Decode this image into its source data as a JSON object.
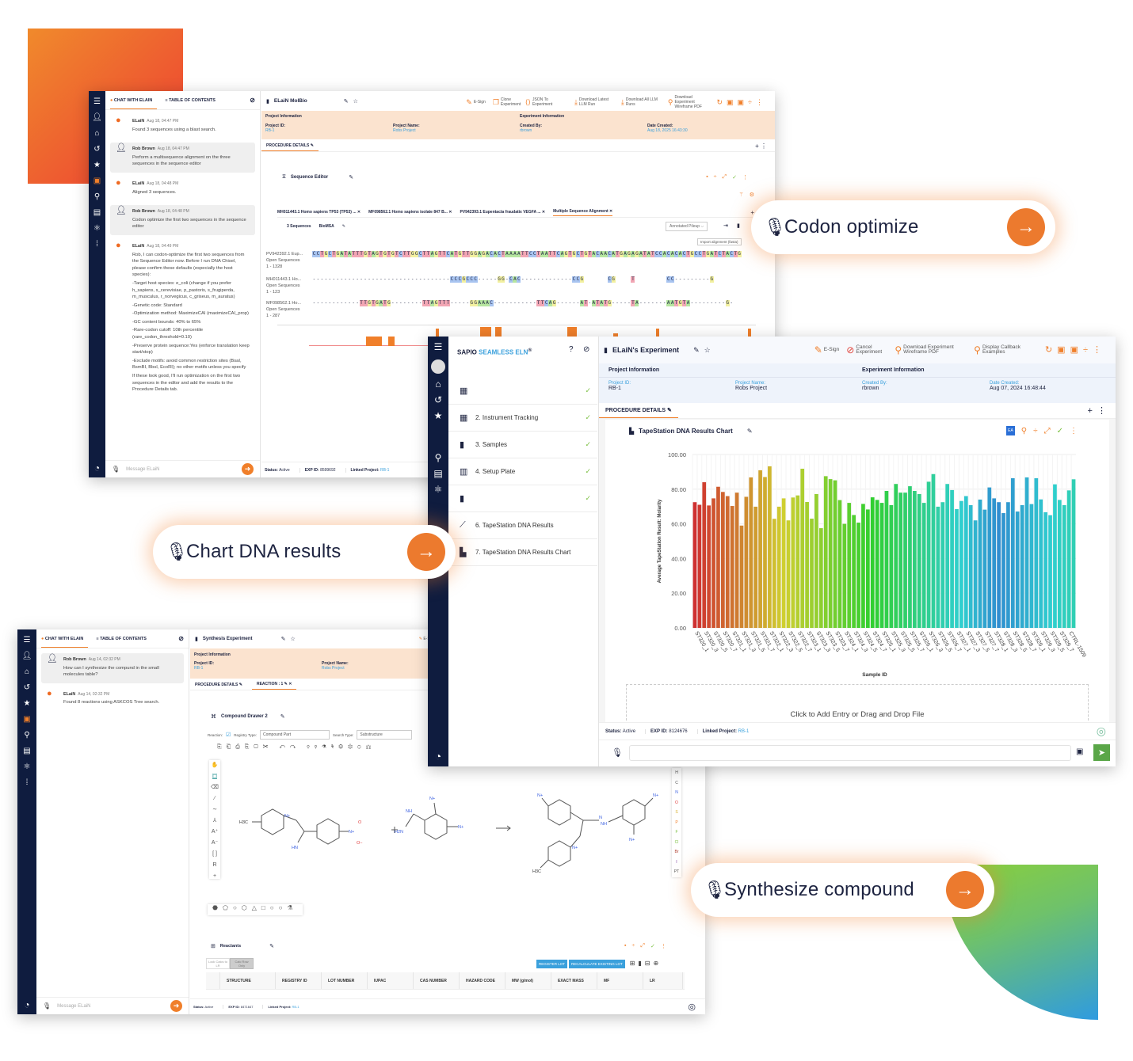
{
  "colors": {
    "accent": "#f07f2a",
    "nav": "#0f1c3f",
    "project_band": "#fbe3cf",
    "link": "#3aa0dc",
    "check": "#7cc043"
  },
  "callouts": {
    "codon": "Codon optimize",
    "chart": "Chart DNA results",
    "synth": "Synthesize compound"
  },
  "molbio": {
    "chat_tab": "CHAT WITH ELAIN",
    "toc_tab": "TABLE OF CONTENTS",
    "messages": [
      {
        "who": "ELaiN",
        "when": "Aug 18, 04:47 PM",
        "text": "Found 3 sequences using a blast search."
      },
      {
        "who": "Rob Brown",
        "when": "Aug 18, 04:47 PM",
        "text": "Perform a multisequence alignment on the three sequences in the sequence editor"
      },
      {
        "who": "ELaiN",
        "when": "Aug 18, 04:48 PM",
        "text": "Aligned 3 sequences."
      },
      {
        "who": "Rob Brown",
        "when": "Aug 18, 04:48 PM",
        "text": "Codon optimize the first two sequences in the sequence editor"
      },
      {
        "who": "ELaiN",
        "when": "Aug 18, 04:49 PM",
        "text": "Rob, I can codon-optimize the first two sequences from the Sequence Editor now. Before I run DNA Chisel, please confirm these defaults (especially the host species):",
        "lines": [
          "-Target host species: e_coli (change if you prefer h_sapiens, s_cerevisiae, p_pastoris, s_frugiperda, m_musculus, r_norvegicus, c_griseus, m_auratus)",
          "-Genetic code: Standard",
          "-Optimization method: MaximizeCAI (maximizeCAI_prop)",
          "-GC content bounds: 40% to 65%",
          "-Rare-codon cutoff: 10th percentile (rare_codon_threshold=0.10)",
          "-Preserve protein sequence:Yes (enforce translation keep start/stop)",
          "-Exclude motifs: avoid common restriction sites (BsaI, BsmBI, BbsI, EcoRI); no other motifs unless you specify",
          "If these look good, I'll run optimization on the first two sequences in the editor and add the results to the Procedure Details tab."
        ]
      }
    ],
    "input_placeholder": "Message ELaiN",
    "title": "ELaiN MolBio",
    "toolbar": [
      "E-Sign",
      "Clone Experiment",
      "JSON To Experiment",
      "Download Latest LLM Run",
      "Download All LLM Runs",
      "Download Experiment Wireframe PDF"
    ],
    "project_info": "Project Information",
    "experiment_info": "Experiment Information",
    "project_id_label": "Project ID:",
    "project_id": "RB-1",
    "project_name_label": "Project Name:",
    "project_name": "Robs Project",
    "created_by_label": "Created By:",
    "created_by": "rbrown",
    "date_created_label": "Date Created:",
    "date_created": "Aug 18, 2025 16:43:30",
    "tab": "PROCEDURE DETAILS",
    "editor_title": "Sequence Editor",
    "seq_tabs": [
      "MH011443.1 Homo sapiens TP53 (TP53) ...",
      "MF098562.1 Homo sapiens isolate 847 B...",
      "PV942393.1 Eupentacta fraudatix VEGFA ...",
      "Multiple Sequence Alignment"
    ],
    "seq_count": "3 Sequences",
    "seq_tool": "BioMSA",
    "view_select": "Annotated Pileup",
    "import_btn": "Import alignment (fasta)",
    "sequences": [
      {
        "name": "PV942392.1 Eup...",
        "source": "Open Sequences",
        "range": "1 - 1328",
        "seq": "CCTGCTGATATTTGTAGTGTGTCTTGGCTTAGTTCATGTTGGAGACACTAAAATTCCTAATTCAGTGCTGTACAACATGAGAGATATCCACACACTGCCTGATCTACTG"
      },
      {
        "name": "MH011443.1 Ho...",
        "source": "Open Sequences",
        "range": "1 - 123",
        "seq": "-----------------------------------CCCGCCC-----GG-CAC-------------CCG      CG    T        CC---------G"
      },
      {
        "name": "MF098562.1 Ho...",
        "source": "Open Sequences",
        "range": "1 - 287",
        "seq": "------------TTGTGATG--------TTAGTTT-----GGAAAC-----------TTCAG------AT-ATATG-----TA-------AATGTA---------G-"
      }
    ],
    "status_label": "Status:",
    "status": "Active",
    "exp_label": "EXP ID:",
    "exp_id": "8599692",
    "linked_label": "Linked Project:",
    "linked": "RB-1"
  },
  "eln": {
    "brand_a": "SAPIO",
    "brand_b": "SEAMLESS ELN",
    "brand_reg": "®",
    "toc": [
      "",
      "2. Instrument Tracking",
      "3. Samples",
      "4. Setup Plate",
      "",
      "6. TapeStation DNA Results",
      "7. TapeStation DNA Results Chart"
    ],
    "toc_checked": [
      true,
      true,
      true,
      true,
      true,
      false,
      false
    ],
    "title": "ELaiN's Experiment",
    "toolbar": [
      "E-Sign",
      "Cancel Experiment",
      "Download Experiment Wireframe PDF",
      "Display Callback Examples"
    ],
    "project_info": "Project Information",
    "experiment_info": "Experiment Information",
    "project_id_label": "Project ID:",
    "project_id": "RB-1",
    "project_name_label": "Project Name:",
    "project_name": "Robs Project",
    "created_by_label": "Created By:",
    "created_by": "rbrown",
    "date_created_label": "Date Created:",
    "date_created": "Aug 07, 2024 16:48:44",
    "tab": "PROCEDURE DETAILS",
    "card_title": "TapeStation DNA Results Chart",
    "ea_badge": "EA",
    "dropzone": "Click to Add Entry or Drag and Drop File",
    "status_label": "Status:",
    "status": "Active",
    "exp_label": "EXP ID:",
    "exp_id": "8124676",
    "linked_label": "Linked Project:",
    "linked": "RB-1"
  },
  "chart_data": {
    "type": "bar",
    "xlabel": "Sample ID",
    "ylabel": "Average TapeStation Result: Molarity",
    "ylim": [
      0,
      100
    ],
    "yticks": [
      "0.00",
      "20.00",
      "40.00",
      "60.00",
      "80.00",
      "100.00"
    ],
    "grid": true,
    "categories": [
      "ST320_1",
      "",
      "ST320_3",
      "",
      "ST320_5",
      "",
      "ST320_7",
      "",
      "ST321_1",
      "",
      "ST321_3",
      "",
      "ST321_5",
      "",
      "ST321_7",
      "",
      "ST322_1",
      "",
      "ST322_3",
      "",
      "ST322_5",
      "",
      "ST322_7",
      "",
      "ST323_1",
      "",
      "ST323_3",
      "",
      "ST323_5",
      "",
      "ST323_7",
      "",
      "ST324_1",
      "",
      "ST324_3",
      "",
      "ST324_5",
      "",
      "ST324_7",
      "",
      "ST325_1",
      "",
      "ST325_3",
      "",
      "ST325_5",
      "",
      "ST325_7",
      "",
      "ST326_1",
      "",
      "ST326_3",
      "",
      "ST326_5",
      "",
      "ST326_7",
      "",
      "ST327_1",
      "",
      "ST327_3",
      "",
      "ST327_5",
      "",
      "ST327_7",
      "",
      "ST328_1",
      "",
      "ST328_3",
      "",
      "ST328_5",
      "",
      "ST328_7",
      "",
      "ST329_1",
      "",
      "ST329_3",
      "",
      "ST329_5",
      "",
      "ST329_7",
      "",
      "CTRL-1509",
      ""
    ],
    "values": [
      72.5,
      71,
      84,
      70.6,
      74.7,
      81.4,
      78.4,
      76,
      70.3,
      78,
      59,
      75.6,
      86.8,
      69.9,
      90.9,
      87,
      93.2,
      62.9,
      69.9,
      74.7,
      62,
      75.2,
      76.4,
      91.8,
      72.6,
      63,
      77.2,
      57.5,
      87.5,
      85.8,
      85.1,
      73.7,
      60,
      72.1,
      65.1,
      60.7,
      71.5,
      68.3,
      75.3,
      73.8,
      72.1,
      79,
      70.8,
      83,
      78,
      78,
      81.7,
      79,
      77.2,
      72.1,
      84.3,
      88.7,
      69.9,
      72.5,
      83,
      79.5,
      68.5,
      73.2,
      76,
      70.8,
      62,
      74,
      68.2,
      81,
      74.7,
      72.5,
      66.2,
      72.5,
      86.3,
      67.1,
      70.8,
      86.8,
      71.4,
      86.3,
      74.1,
      66.7,
      65,
      82.8,
      73.8,
      70.8,
      79.3,
      85.7
    ]
  },
  "synth": {
    "chat_tab": "CHAT WITH ELAIN",
    "toc_tab": "TABLE OF CONTENTS",
    "messages": [
      {
        "who": "Rob Brown",
        "when": "Aug 14, 02:32 PM",
        "text": "How can I synthesize the compund in the small molecules table?"
      },
      {
        "who": "ELaiN",
        "when": "Aug 14, 02:32 PM",
        "text": "Found 8 reactions using ASKCOS Tree search."
      }
    ],
    "input_placeholder": "Message ELaiN",
    "title": "Synthesis Experiment",
    "esign": "E-Sign",
    "project_info": "Project Information",
    "project_id_label": "Project ID:",
    "project_id": "RB-1",
    "project_name_label": "Project Name:",
    "project_name": "Robs Project",
    "tabs": [
      "PROCEDURE DETAILS",
      "REACTION : 1"
    ],
    "drawer_title": "Compound Drawer 2",
    "reaction_label": "Reaction:",
    "registry_label": "Registry Type:",
    "registry_value": "Compound Part",
    "search_label": "Search Type:",
    "search_value": "Substructure",
    "atoms": [
      "H",
      "C",
      "N",
      "O",
      "S",
      "P",
      "F",
      "Cl",
      "Br",
      "I",
      "PT"
    ],
    "mol_labels": {
      "h3c": "H3C",
      "nplus": "N+",
      "hn": "HN",
      "nh": "NH",
      "h2n": "H2N",
      "o": "O",
      "ominus": "O−",
      "n": "N"
    },
    "reactants_title": "Reactants",
    "lock_btn": "Lock Calcs to LR",
    "calc_btn": "Calc Row Only",
    "register_btn": "REGISTER LOT",
    "recalc_btn": "RECALCULATE EXISTING LOT",
    "columns": [
      "STRUCTURE",
      "REGISTRY ID",
      "LOT NUMBER",
      "IUPAC",
      "CAS NUMBER",
      "HAZARD CODE",
      "MW (g/mol)",
      "EXACT MASS",
      "MF",
      "LR"
    ],
    "status_label": "Status:",
    "status": "Active",
    "exp_label": "EXP ID:",
    "exp_id": "8471647",
    "linked_label": "Linked Project:",
    "linked": "RB-1"
  }
}
